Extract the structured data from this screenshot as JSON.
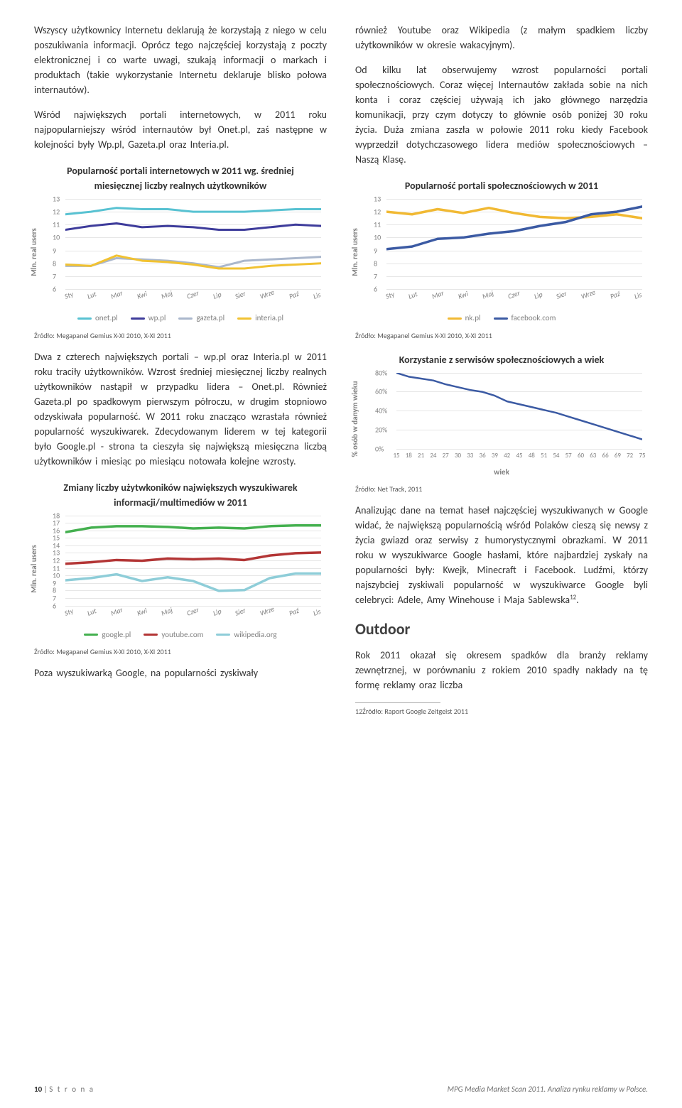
{
  "left": {
    "p1": "Wszyscy użytkownicy Internetu deklarują że korzystają z niego w celu poszukiwania informacji. Oprócz tego najczęściej korzystają z poczty elektronicznej i co warte uwagi, szukają informacji o markach i produktach (takie wykorzystanie Internetu deklaruje blisko połowa internautów).",
    "p2": "Wśród największych portali internetowych, w 2011 roku najpopularniejszy wśród internautów był Onet.pl, zaś następne w kolejności były Wp.pl, Gazeta.pl oraz Interia.pl.",
    "chart1": {
      "title": "Popularność portali internetowych w 2011 wg. średniej miesięcznej liczby realnych użytkowników",
      "ylabel": "Mln. real users",
      "xlabels": [
        "Sty",
        "Lut",
        "Mar",
        "Kwi",
        "Maj",
        "Czer",
        "Lip",
        "Sier",
        "Wrze",
        "Paź",
        "Lis"
      ],
      "ymin": 6,
      "ymax": 13,
      "series": [
        {
          "name": "onet.pl",
          "color": "#58c2d2",
          "values": [
            11.8,
            12.0,
            12.3,
            12.2,
            12.2,
            12.0,
            12.0,
            12.0,
            12.1,
            12.2,
            12.2
          ]
        },
        {
          "name": "wp.pl",
          "color": "#3e3c9b",
          "values": [
            10.6,
            10.9,
            11.1,
            10.8,
            10.9,
            10.8,
            10.6,
            10.6,
            10.8,
            11.0,
            10.9
          ]
        },
        {
          "name": "gazeta.pl",
          "color": "#aab7cc",
          "values": [
            7.8,
            7.8,
            8.4,
            8.3,
            8.2,
            8.0,
            7.7,
            8.2,
            8.3,
            8.4,
            8.5
          ]
        },
        {
          "name": "interia.pl",
          "color": "#f1c232",
          "values": [
            7.9,
            7.8,
            8.6,
            8.2,
            8.1,
            7.9,
            7.6,
            7.6,
            7.8,
            7.9,
            8.0
          ]
        }
      ],
      "source": "Źródło: Megapanel Gemius  X-XI 2010, X-XI 2011"
    },
    "p3": "Dwa z czterech największych portali – wp.pl oraz Interia.pl w 2011 roku traciły użytkowników. Wzrost średniej miesięcznej liczby realnych użytkowników nastąpił w przypadku lidera – Onet.pl. Również Gazeta.pl po spadkowym pierwszym półroczu, w drugim stopniowo odzyskiwała popularność. W 2011 roku znacząco wzrastała również popularność wyszukiwarek. Zdecydowanym liderem w tej kategorii było Google.pl - strona ta cieszyła się największą miesięczna liczbą użytkowników i miesiąc po miesiącu notowała kolejne wzrosty.",
    "chart2": {
      "title": "Zmiany liczby użytwkoników największych wyszukiwarek informacji/multimediów w 2011",
      "ylabel": "Mln. real users",
      "xlabels": [
        "Sty",
        "Lut",
        "Mar",
        "Kwi",
        "Maj",
        "Czer",
        "Lip",
        "Sier",
        "Wrze",
        "Paź",
        "Lis"
      ],
      "ymin": 6,
      "ymax": 18,
      "series": [
        {
          "name": "google.pl",
          "color": "#44b04f",
          "values": [
            15.8,
            16.4,
            16.6,
            16.6,
            16.5,
            16.3,
            16.4,
            16.3,
            16.6,
            16.7,
            16.7
          ]
        },
        {
          "name": "youtube.com",
          "color": "#b33535",
          "values": [
            11.6,
            11.8,
            12.1,
            12.0,
            12.3,
            12.2,
            12.3,
            12.1,
            12.7,
            13.0,
            13.1
          ]
        },
        {
          "name": "wikipedia.org",
          "color": "#8ecdd8",
          "values": [
            9.4,
            9.7,
            10.2,
            9.3,
            9.8,
            9.3,
            8.0,
            8.1,
            9.7,
            10.3,
            10.3
          ]
        }
      ],
      "source": "Źródło: Megapanel Gemius  X-XI 2010, X-XI 2011"
    },
    "p4": "Poza wyszukiwarką Google, na popularności zyskiwały"
  },
  "right": {
    "p1": "również Youtube oraz Wikipedia (z małym spadkiem liczby użytkowników w okresie wakacyjnym).",
    "p2": "Od kilku lat obserwujemy wzrost popularności portali społecznościowych. Coraz więcej Internautów zakłada sobie na nich konta i coraz częściej używają ich jako głównego narzędzia komunikacji, przy czym dotyczy to głównie osób poniżej 30 roku życia. Duża zmiana zaszła w połowie 2011 roku kiedy Facebook wyprzedził dotychczasowego lidera mediów społecznościowych – Naszą Klasę.",
    "chart3": {
      "title": "Popularność portali społecznościowych w 2011",
      "ylabel": "Mln. real users",
      "xlabels": [
        "Sty",
        "Lut",
        "Mar",
        "Kwi",
        "Maj",
        "Czer",
        "Lip",
        "Sier",
        "Wrze",
        "Paź",
        "Lis"
      ],
      "ymin": 6,
      "ymax": 13,
      "series": [
        {
          "name": "nk.pl",
          "color": "#f1b933",
          "values": [
            12.0,
            11.8,
            12.2,
            11.9,
            12.3,
            11.9,
            11.6,
            11.5,
            11.6,
            11.8,
            11.5
          ]
        },
        {
          "name": "facebook.com",
          "color": "#3b5aa3",
          "values": [
            9.1,
            9.3,
            9.9,
            10.0,
            10.3,
            10.5,
            10.9,
            11.2,
            11.8,
            12.0,
            12.4
          ]
        }
      ],
      "source": "Źródło: Megapanel Gemius  X-XI 2010, X-XI 2011"
    },
    "chart4": {
      "title": "Korzystanie z serwisów społecznościowych a wiek",
      "ylabel": "% osób w danym wieku",
      "xaxis_title": "wiek",
      "xlabels": [
        "15",
        "18",
        "21",
        "24",
        "27",
        "30",
        "33",
        "36",
        "39",
        "42",
        "45",
        "48",
        "51",
        "54",
        "57",
        "60",
        "63",
        "66",
        "69",
        "72",
        "75"
      ],
      "ymin": 0,
      "ymax": 80,
      "ystep": 20,
      "color": "#3b5aa3",
      "values": [
        80,
        76,
        74,
        72,
        68,
        65,
        62,
        60,
        56,
        50,
        47,
        44,
        41,
        38,
        34,
        30,
        26,
        22,
        18,
        14,
        10
      ],
      "source": "Źródło: Net Track, 2011"
    },
    "p3": "Analizując dane na temat haseł najczęściej wyszukiwanych w Google widać, że największą popularnością wśród Polaków cieszą się newsy z życia gwiazd oraz serwisy z humorystycznymi obrazkami. W 2011 roku w wyszukiwarce Google hasłami, które najbardziej zyskały na popularności były: Kwejk, Minecraft i Facebook. Ludźmi, którzy najszybciej zyskiwali popularność w wyszukiwarce Google byli celebryci: Adele, Amy Winehouse i Maja Sablewska",
    "h2": "Outdoor",
    "p4": "Rok 2011 okazał się okresem spadków dla branży reklamy zewnętrznej, w porównaniu z rokiem 2010 spadły nakłady na tę formę reklamy oraz liczba",
    "footnote": "12Źródło: Raport Google Zeitgeist 2011"
  },
  "footer": {
    "page_num": "10",
    "page_label": "S t r o n a",
    "doc_title": "MPG Media Market Scan 2011. Analiza rynku reklamy w Polsce."
  }
}
